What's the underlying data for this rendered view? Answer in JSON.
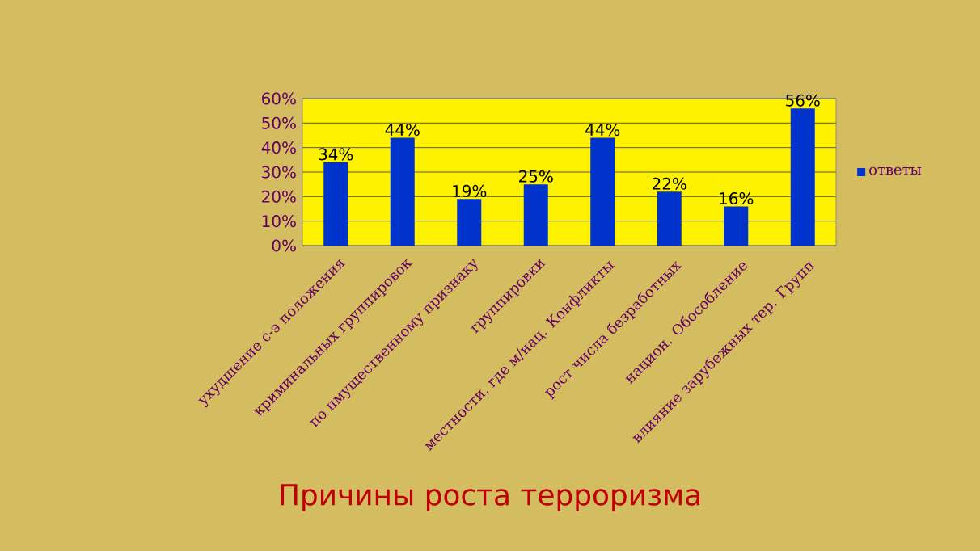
{
  "chart_data": {
    "type": "bar",
    "title": "Причины роста терроризма",
    "categories": [
      "ухудшение с-э положения",
      "криминальных группировок",
      "по имущественному признаку",
      "группировки",
      "местности, где м/нац. Конфликты",
      "рост числа безработных",
      "национ. Обособление",
      "влияние зарубежных тер. Групп"
    ],
    "series": [
      {
        "name": "ответы",
        "color": "#0033cc",
        "values": [
          34,
          44,
          19,
          25,
          44,
          22,
          16,
          56
        ]
      }
    ],
    "value_labels": [
      "34%",
      "44%",
      "19%",
      "25%",
      "44%",
      "22%",
      "16%",
      "56%"
    ],
    "ylim": [
      0,
      60
    ],
    "yticks": [
      {
        "value": 0,
        "label": "0%"
      },
      {
        "value": 10,
        "label": "10%"
      },
      {
        "value": 20,
        "label": "20%"
      },
      {
        "value": 30,
        "label": "30%"
      },
      {
        "value": 40,
        "label": "40%"
      },
      {
        "value": 50,
        "label": "50%"
      },
      {
        "value": 60,
        "label": "60%"
      }
    ],
    "grid": "y",
    "legend": "right"
  }
}
